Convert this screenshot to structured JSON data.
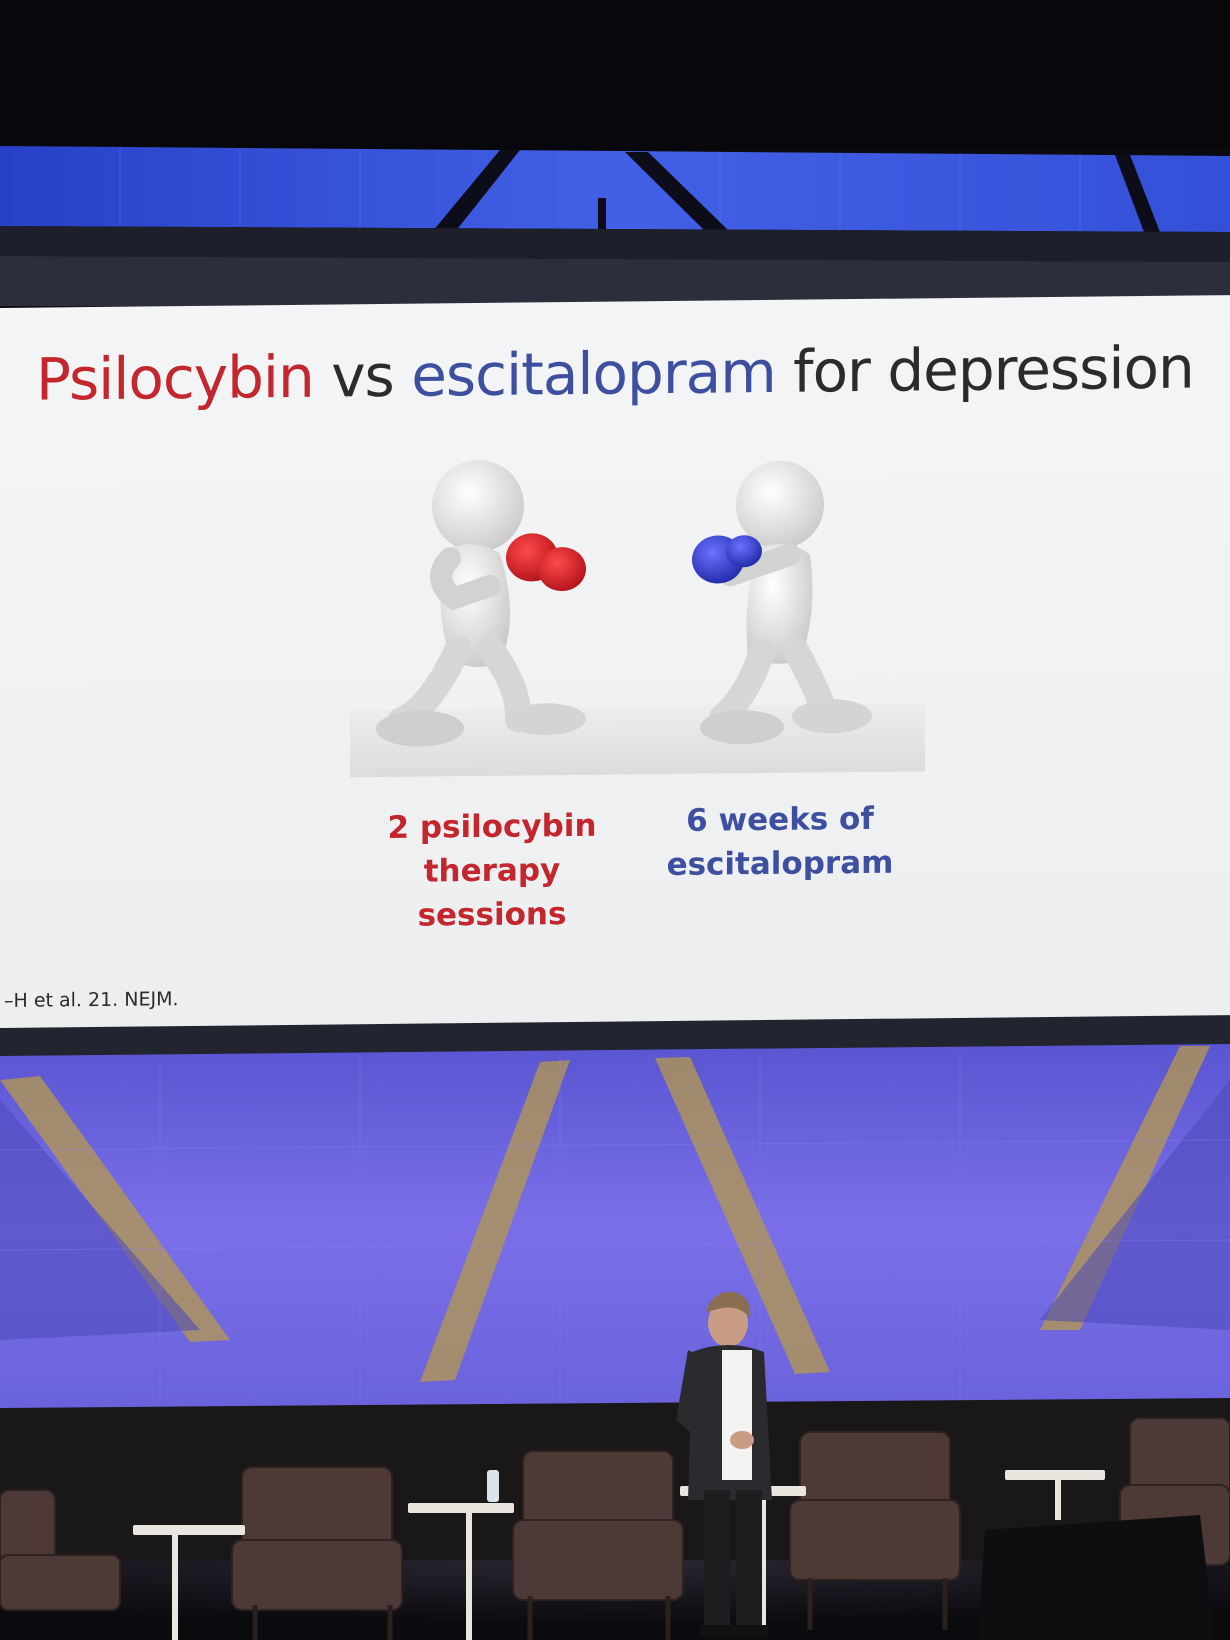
{
  "slide": {
    "title_parts": [
      "Psilocybin",
      "vs",
      "escitalopram",
      "for depression"
    ],
    "left_caption": [
      "2 psilocybin",
      "therapy",
      "sessions"
    ],
    "right_caption": [
      "6 weeks of",
      "escitalopram"
    ],
    "citation": "–H et al. 21. NEJM."
  },
  "icons": {
    "left_figure": "boxer-red-gloves",
    "right_figure": "boxer-blue-gloves"
  },
  "colors": {
    "red_accent": "#c3262c",
    "blue_accent": "#3e4fa0",
    "text_dark": "#2b2b2b",
    "stage_purple": "#6b5fd8",
    "slide_bg": "#eef0f1"
  }
}
